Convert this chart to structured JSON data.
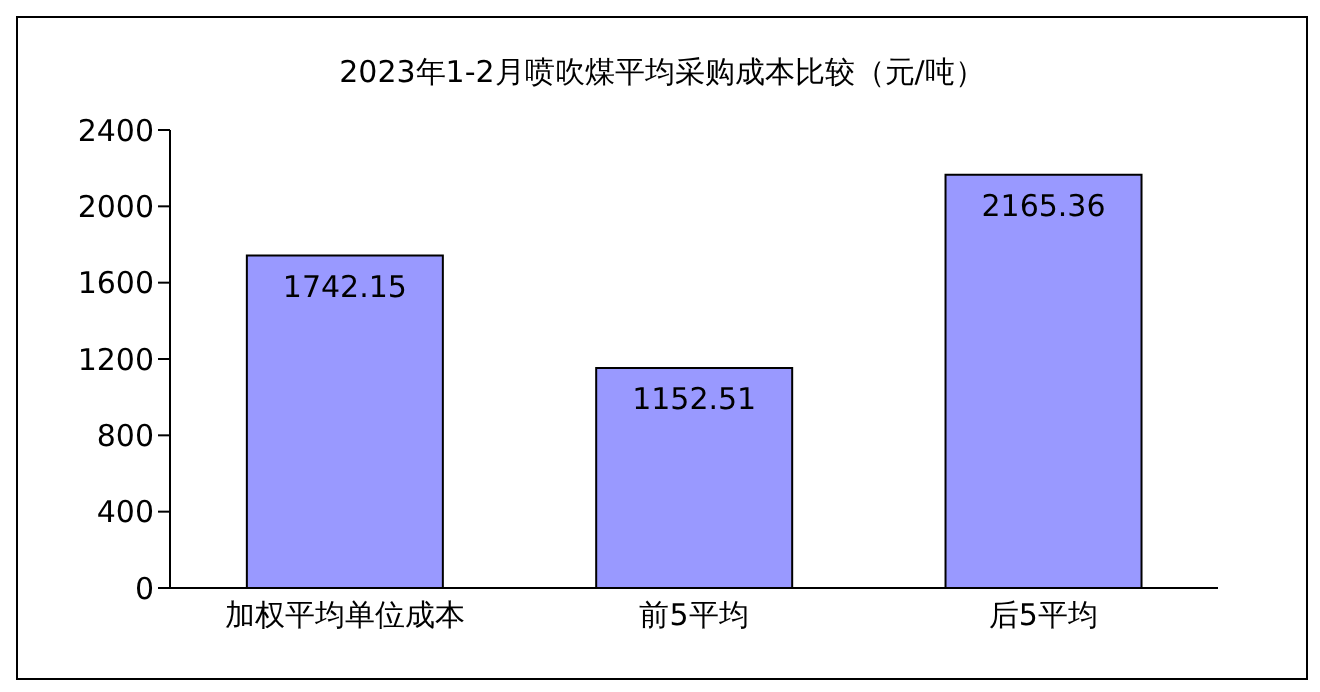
{
  "chart_data": {
    "type": "bar",
    "title": "2023年1-2月喷吹煤平均采购成本比较（元/吨）",
    "categories": [
      "加权平均单位成本",
      "前5平均",
      "后5平均"
    ],
    "values": [
      1742.15,
      1152.51,
      2165.36
    ],
    "color": "#9999ff",
    "ylim": [
      0,
      2400
    ],
    "yticks": [
      0,
      400,
      800,
      1200,
      1600,
      2000,
      2400
    ],
    "data_labels": true,
    "grid": false,
    "legend": false
  }
}
